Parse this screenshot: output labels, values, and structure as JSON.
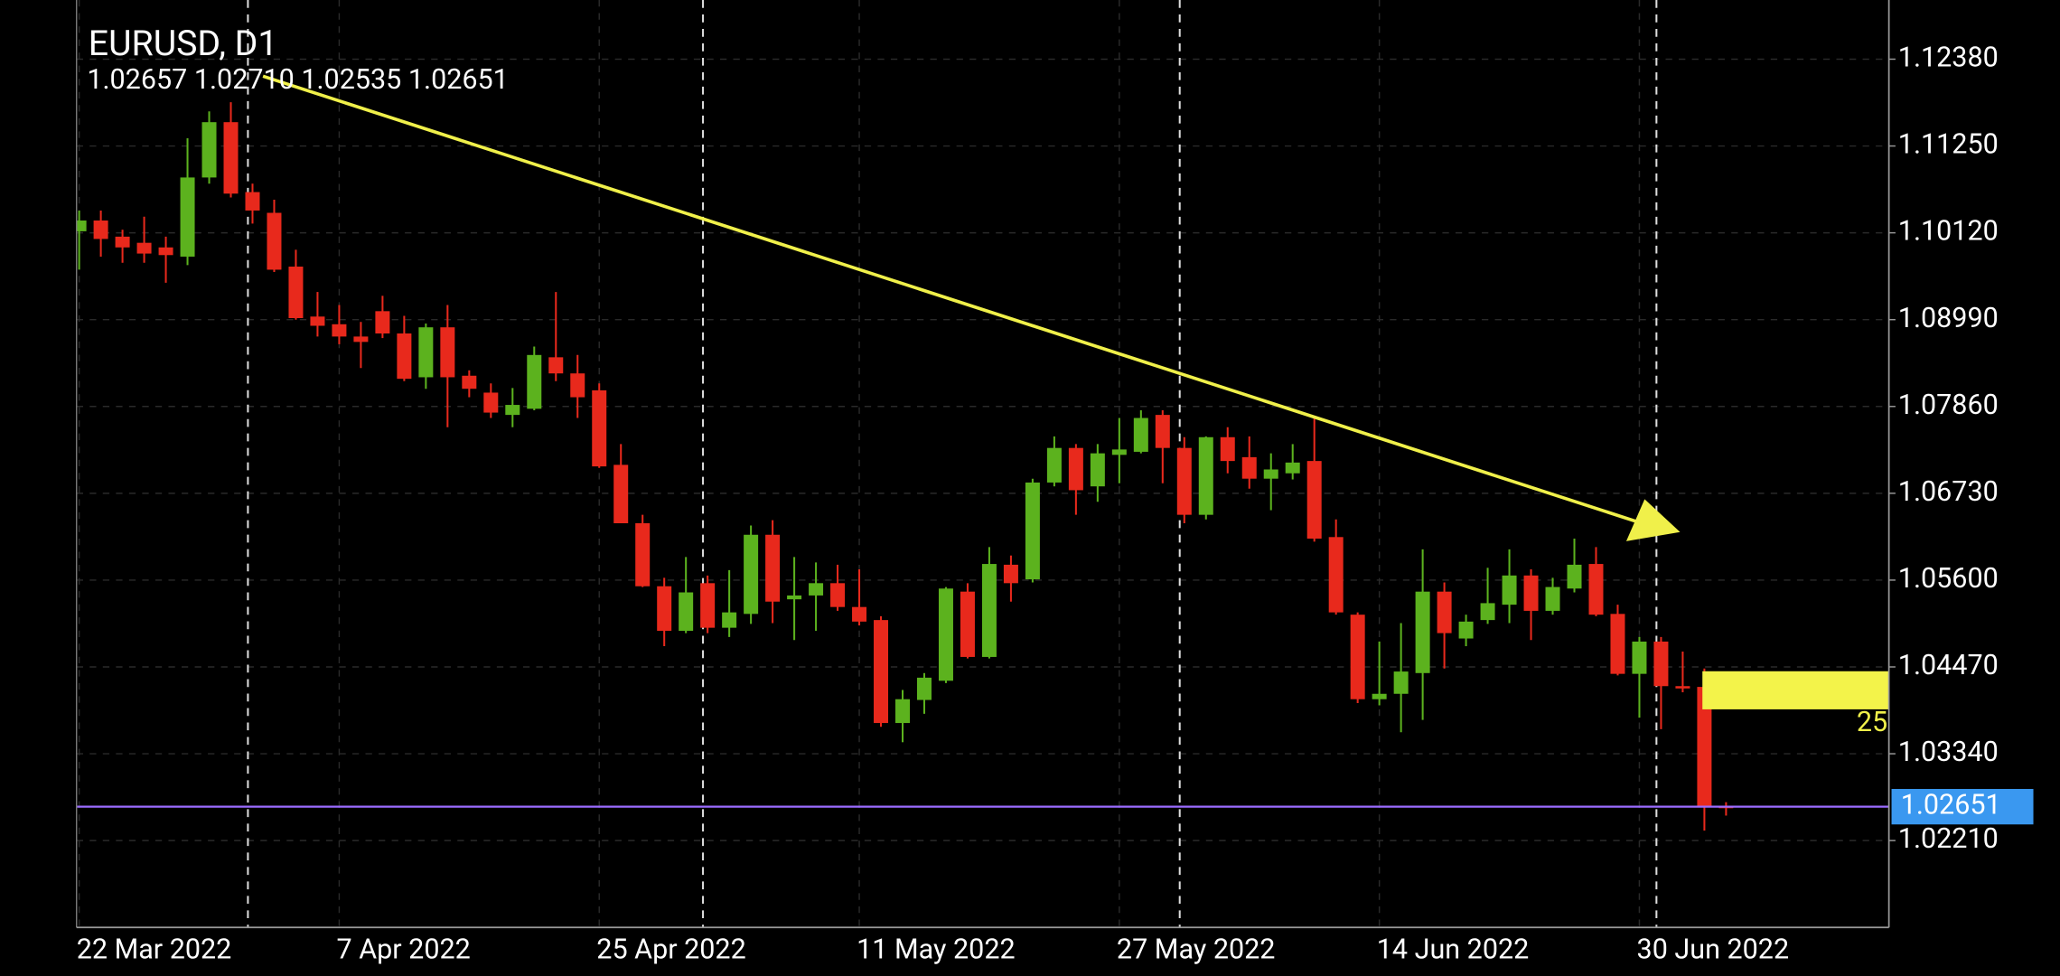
{
  "chart_data": {
    "type": "candlestick",
    "title": "EURUSD, D1",
    "ohlc_label": "1.02657 1.02710 1.02535 1.02651",
    "annotation_text": "25",
    "categories": [
      "22 Mar 2022",
      null,
      null,
      null,
      null,
      null,
      null,
      null,
      null,
      null,
      null,
      null,
      "7 Apr 2022",
      null,
      null,
      null,
      null,
      null,
      null,
      null,
      null,
      null,
      null,
      null,
      "25 Apr 2022",
      null,
      null,
      null,
      null,
      null,
      null,
      null,
      null,
      null,
      null,
      null,
      "11 May 2022",
      null,
      null,
      null,
      null,
      null,
      null,
      null,
      null,
      null,
      null,
      null,
      "27 May 2022",
      null,
      null,
      null,
      null,
      null,
      null,
      null,
      null,
      null,
      null,
      null,
      "14 Jun 2022",
      null,
      null,
      null,
      null,
      null,
      null,
      null,
      null,
      null,
      null,
      null,
      "30 Jun 2022",
      null,
      null,
      null,
      null
    ],
    "open": [
      1.1014,
      1.1028,
      1.1007,
      1.0999,
      1.0993,
      1.0981,
      1.1084,
      1.1156,
      1.1065,
      1.1038,
      1.0968,
      1.0903,
      1.0893,
      1.0877,
      1.091,
      1.0881,
      1.0824,
      1.0889,
      1.0826,
      1.0804,
      1.0775,
      1.0783,
      1.085,
      1.0829,
      1.0807,
      1.071,
      1.0634,
      1.0552,
      1.0494,
      1.0556,
      1.0498,
      1.0516,
      1.0619,
      1.0535,
      1.054,
      1.0556,
      1.0525,
      1.0508,
      1.0374,
      1.0404,
      1.0429,
      1.0545,
      1.046,
      1.058,
      1.0561,
      1.0687,
      1.0732,
      1.0682,
      1.0723,
      1.0727,
      1.0775,
      1.0732,
      1.0645,
      1.0746,
      1.072,
      1.0692,
      1.0699,
      1.0715,
      1.0616,
      1.0515,
      1.0405,
      1.0412,
      1.0439,
      1.0545,
      1.0484,
      1.0508,
      1.0528,
      1.0566,
      1.052,
      1.0549,
      1.0581,
      1.0516,
      1.0438,
      1.048,
      1.0422,
      1.0421,
      1.02657
    ],
    "high": [
      1.1041,
      1.1041,
      1.1016,
      1.1033,
      1.1007,
      1.1135,
      1.117,
      1.1182,
      1.1076,
      1.1055,
      1.099,
      1.0935,
      1.0918,
      1.0896,
      1.093,
      1.0904,
      1.0894,
      1.0918,
      1.0833,
      1.0816,
      1.081,
      1.0864,
      1.0935,
      1.0853,
      1.0816,
      1.0737,
      1.0645,
      1.0563,
      1.059,
      1.0566,
      1.0573,
      1.0631,
      1.0638,
      1.059,
      1.0583,
      1.058,
      1.0574,
      1.0513,
      1.0417,
      1.0439,
      1.0551,
      1.0556,
      1.0603,
      1.0592,
      1.0692,
      1.0747,
      1.0737,
      1.0737,
      1.0771,
      1.0781,
      1.0781,
      1.0746,
      1.0747,
      1.0759,
      1.0747,
      1.0725,
      1.0737,
      1.0771,
      1.0639,
      1.0518,
      1.048,
      1.0504,
      1.06,
      1.0557,
      1.0515,
      1.0576,
      1.06,
      1.0574,
      1.0563,
      1.0614,
      1.0603,
      1.0528,
      1.0486,
      1.0486,
      1.0467,
      1.0445,
      1.0271
    ],
    "low": [
      1.0964,
      1.0981,
      1.0973,
      1.0973,
      1.0947,
      1.097,
      1.1076,
      1.1058,
      1.1024,
      1.0961,
      1.0899,
      1.0877,
      1.0867,
      1.0836,
      1.0875,
      1.0819,
      1.0809,
      1.0759,
      1.0798,
      1.0771,
      1.0759,
      1.0781,
      1.0819,
      1.0771,
      1.0706,
      1.0634,
      1.0551,
      1.0474,
      1.0491,
      1.0491,
      1.0486,
      1.0503,
      1.0504,
      1.0482,
      1.0494,
      1.052,
      1.0501,
      1.0369,
      1.0349,
      1.0386,
      1.0426,
      1.0458,
      1.0458,
      1.0532,
      1.0557,
      1.0682,
      1.0645,
      1.0662,
      1.0686,
      1.0725,
      1.0686,
      1.0634,
      1.0639,
      1.0699,
      1.0679,
      1.0651,
      1.0691,
      1.061,
      1.0515,
      1.04,
      1.0397,
      1.0362,
      1.0378,
      1.0445,
      1.0474,
      1.0503,
      1.0504,
      1.0482,
      1.0515,
      1.0544,
      1.0513,
      1.0436,
      1.0381,
      1.0366,
      1.0414,
      1.0234,
      1.02535
    ],
    "close": [
      1.1028,
      1.1004,
      1.0993,
      1.0985,
      1.0983,
      1.1084,
      1.1156,
      1.1063,
      1.1041,
      1.0964,
      1.0901,
      1.0891,
      1.0877,
      1.087,
      1.0881,
      1.0822,
      1.0889,
      1.0824,
      1.0809,
      1.0778,
      1.0788,
      1.0853,
      1.0829,
      1.0798,
      1.0708,
      1.0634,
      1.0552,
      1.0494,
      1.0544,
      1.0498,
      1.0518,
      1.0619,
      1.0532,
      1.054,
      1.0556,
      1.0525,
      1.0506,
      1.0374,
      1.0405,
      1.0433,
      1.0549,
      1.046,
      1.0581,
      1.0556,
      1.0687,
      1.0732,
      1.0677,
      1.0725,
      1.073,
      1.0771,
      1.0732,
      1.0645,
      1.0746,
      1.0715,
      1.0692,
      1.0704,
      1.0713,
      1.0614,
      1.0518,
      1.0405,
      1.0412,
      1.0441,
      1.0545,
      1.0491,
      1.0506,
      1.053,
      1.0566,
      1.052,
      1.0551,
      1.058,
      1.0515,
      1.0438,
      1.048,
      1.0422,
      1.0419,
      1.0266,
      1.02651
    ],
    "up_color": "#5cb21e",
    "down_color": "#e8291c",
    "ylim": [
      1.0108,
      1.1315
    ],
    "yticks": [
      {
        "value": 1.1238,
        "label": "1.12380"
      },
      {
        "value": 1.1125,
        "label": "1.11250"
      },
      {
        "value": 1.1012,
        "label": "1.10120"
      },
      {
        "value": 1.0899,
        "label": "1.08990"
      },
      {
        "value": 1.0786,
        "label": "1.07860"
      },
      {
        "value": 1.0673,
        "label": "1.06730"
      },
      {
        "value": 1.056,
        "label": "1.05600"
      },
      {
        "value": 1.0447,
        "label": "1.04470"
      },
      {
        "value": 1.0334,
        "label": "1.03340"
      },
      {
        "value": 1.0221,
        "label": "1.02210"
      }
    ],
    "last_price": {
      "value": 1.02651,
      "label": "1.02651"
    },
    "period_separators": [
      8,
      29,
      51,
      73
    ],
    "grid": true
  }
}
